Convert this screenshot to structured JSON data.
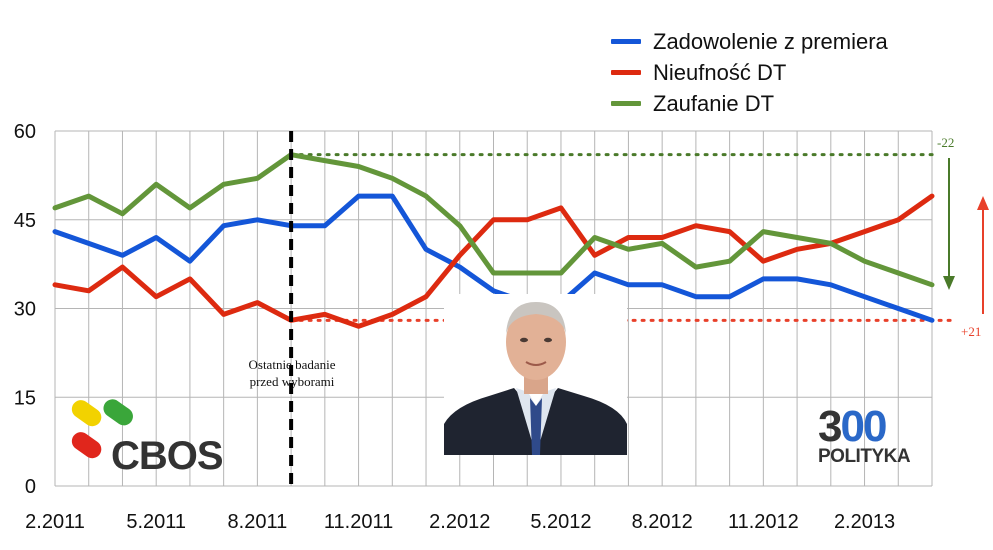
{
  "chart_data": {
    "type": "line",
    "ylim": [
      0,
      60
    ],
    "yticks": [
      "0",
      "15",
      "30",
      "45",
      "60"
    ],
    "xtick_labels": [
      {
        "index": 0,
        "label": "2.2011"
      },
      {
        "index": 3,
        "label": "5.2011"
      },
      {
        "index": 6,
        "label": "8.2011"
      },
      {
        "index": 9,
        "label": "11.2011"
      },
      {
        "index": 12,
        "label": "2.2012"
      },
      {
        "index": 15,
        "label": "5.2012"
      },
      {
        "index": 18,
        "label": "8.2012"
      },
      {
        "index": 21,
        "label": "11.2012"
      },
      {
        "index": 24,
        "label": "2.2013"
      }
    ],
    "x": [
      "2.2011",
      "3.2011",
      "4.2011",
      "5.2011",
      "6.2011",
      "7.2011",
      "8.2011",
      "9.2011",
      "10.2011",
      "11.2011",
      "12.2011",
      "1.2012",
      "2.2012",
      "3.2012",
      "4.2012",
      "5.2012",
      "6.2012",
      "7.2012",
      "8.2012",
      "9.2012",
      "10.2012",
      "11.2012",
      "12.2012",
      "1.2013",
      "2.2013",
      "3.2013",
      "4.2013"
    ],
    "series": [
      {
        "name": "Zadowolenie z premiera",
        "color": "#1456d8",
        "values": [
          43,
          41,
          39,
          42,
          38,
          44,
          45,
          44,
          44,
          49,
          49,
          40,
          37,
          33,
          31,
          31,
          36,
          34,
          34,
          32,
          32,
          35,
          35,
          34,
          32,
          30,
          28
        ]
      },
      {
        "name": "Nieufność DT",
        "color": "#dd2a10",
        "values": [
          34,
          33,
          37,
          32,
          35,
          29,
          31,
          28,
          29,
          27,
          29,
          32,
          39,
          45,
          45,
          47,
          39,
          42,
          42,
          44,
          43,
          38,
          40,
          41,
          43,
          45,
          49
        ]
      },
      {
        "name": "Zaufanie DT",
        "color": "#63963a",
        "values": [
          47,
          49,
          46,
          51,
          47,
          51,
          52,
          56,
          55,
          54,
          52,
          49,
          44,
          36,
          36,
          36,
          42,
          40,
          41,
          37,
          38,
          43,
          42,
          41,
          38,
          36,
          34
        ]
      }
    ],
    "grid": true,
    "legend_position": "top-right",
    "annotations": {
      "election_line": {
        "x_index": 7,
        "label_line1": "Ostatnie badanie",
        "label_line2": "przed wyborami"
      },
      "zaufanie_ref": {
        "value": 56,
        "delta": "-22",
        "color": "#4a7a2a"
      },
      "nieufnosc_ref": {
        "value": 28,
        "delta": "+21",
        "color": "#e8402a"
      }
    }
  },
  "logos": {
    "cbos_text": "CBOS",
    "p300_num_a": "3",
    "p300_num_b": "00",
    "p300_sub": "POLITYKA"
  },
  "photo": {
    "subject": "portrait"
  }
}
